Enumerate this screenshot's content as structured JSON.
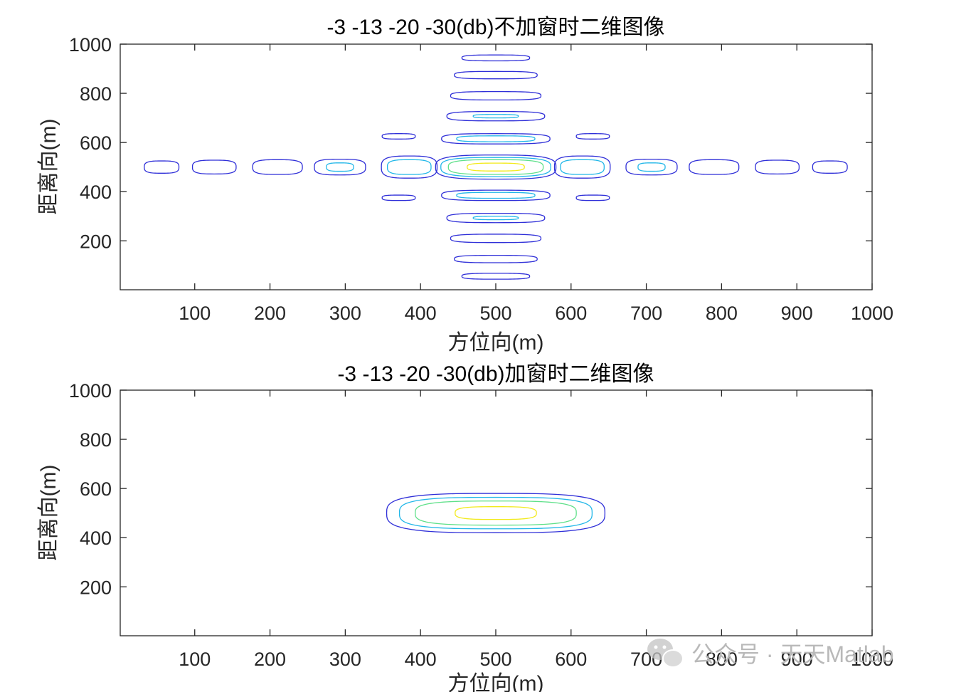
{
  "watermark": {
    "text": "公众号 · 天天Matlab",
    "icon": "wechat-icon",
    "color": "#b9b9b9"
  },
  "chart_data": [
    {
      "type": "contour",
      "title": "-3 -13 -20 -30(db)不加窗时二维图像",
      "xlabel": "方位向(m)",
      "ylabel": "距离向(m)",
      "xlim": [
        1,
        1000
      ],
      "ylim": [
        1,
        1000
      ],
      "xticks": [
        100,
        200,
        300,
        400,
        500,
        600,
        700,
        800,
        900,
        1000
      ],
      "yticks": [
        200,
        400,
        600,
        800,
        1000
      ],
      "levels": [
        {
          "name": "-30 dB",
          "color": "#2f2fd8"
        },
        {
          "name": "-20 dB",
          "color": "#22b7e8"
        },
        {
          "name": "-13 dB",
          "color": "#5fe08a"
        },
        {
          "name": "-3 dB",
          "color": "#f2ea1a"
        }
      ],
      "contours": [
        {
          "level": 0,
          "cx": 500,
          "cy": 500,
          "rx": 80,
          "ry": 49
        },
        {
          "level": 1,
          "cx": 500,
          "cy": 500,
          "rx": 73,
          "ry": 39
        },
        {
          "level": 2,
          "cx": 500,
          "cy": 500,
          "rx": 63,
          "ry": 30
        },
        {
          "level": 3,
          "cx": 500,
          "cy": 500,
          "rx": 38,
          "ry": 16
        },
        {
          "level": 0,
          "cx": 385,
          "cy": 500,
          "rx": 37,
          "ry": 45
        },
        {
          "level": 1,
          "cx": 385,
          "cy": 500,
          "rx": 29,
          "ry": 30
        },
        {
          "level": 0,
          "cx": 615,
          "cy": 500,
          "rx": 37,
          "ry": 45
        },
        {
          "level": 1,
          "cx": 615,
          "cy": 500,
          "rx": 29,
          "ry": 30
        },
        {
          "level": 0,
          "cx": 293,
          "cy": 500,
          "rx": 34,
          "ry": 32
        },
        {
          "level": 1,
          "cx": 293,
          "cy": 500,
          "rx": 18,
          "ry": 17
        },
        {
          "level": 0,
          "cx": 707,
          "cy": 500,
          "rx": 34,
          "ry": 32
        },
        {
          "level": 1,
          "cx": 707,
          "cy": 500,
          "rx": 18,
          "ry": 17
        },
        {
          "level": 0,
          "cx": 210,
          "cy": 500,
          "rx": 33,
          "ry": 30
        },
        {
          "level": 0,
          "cx": 790,
          "cy": 500,
          "rx": 33,
          "ry": 30
        },
        {
          "level": 0,
          "cx": 126,
          "cy": 500,
          "rx": 29,
          "ry": 28
        },
        {
          "level": 0,
          "cx": 874,
          "cy": 500,
          "rx": 29,
          "ry": 28
        },
        {
          "level": 0,
          "cx": 56,
          "cy": 500,
          "rx": 23,
          "ry": 25
        },
        {
          "level": 0,
          "cx": 944,
          "cy": 500,
          "rx": 23,
          "ry": 25
        },
        {
          "level": 0,
          "cx": 500,
          "cy": 615,
          "rx": 72,
          "ry": 21
        },
        {
          "level": 1,
          "cx": 500,
          "cy": 615,
          "rx": 52,
          "ry": 12
        },
        {
          "level": 0,
          "cx": 500,
          "cy": 385,
          "rx": 72,
          "ry": 21
        },
        {
          "level": 1,
          "cx": 500,
          "cy": 385,
          "rx": 52,
          "ry": 12
        },
        {
          "level": 0,
          "cx": 500,
          "cy": 707,
          "rx": 65,
          "ry": 19
        },
        {
          "level": 1,
          "cx": 500,
          "cy": 707,
          "rx": 30,
          "ry": 7
        },
        {
          "level": 0,
          "cx": 500,
          "cy": 293,
          "rx": 65,
          "ry": 19
        },
        {
          "level": 1,
          "cx": 500,
          "cy": 293,
          "rx": 30,
          "ry": 7
        },
        {
          "level": 0,
          "cx": 500,
          "cy": 790,
          "rx": 60,
          "ry": 17
        },
        {
          "level": 0,
          "cx": 500,
          "cy": 210,
          "rx": 60,
          "ry": 17
        },
        {
          "level": 0,
          "cx": 500,
          "cy": 874,
          "rx": 55,
          "ry": 15
        },
        {
          "level": 0,
          "cx": 500,
          "cy": 126,
          "rx": 55,
          "ry": 15
        },
        {
          "level": 0,
          "cx": 500,
          "cy": 944,
          "rx": 45,
          "ry": 12
        },
        {
          "level": 0,
          "cx": 500,
          "cy": 56,
          "rx": 45,
          "ry": 12
        },
        {
          "level": 0,
          "cx": 371,
          "cy": 625,
          "rx": 22,
          "ry": 11
        },
        {
          "level": 0,
          "cx": 629,
          "cy": 625,
          "rx": 22,
          "ry": 11
        },
        {
          "level": 0,
          "cx": 371,
          "cy": 375,
          "rx": 22,
          "ry": 11
        },
        {
          "level": 0,
          "cx": 629,
          "cy": 375,
          "rx": 22,
          "ry": 11
        }
      ]
    },
    {
      "type": "contour",
      "title": "-3 -13 -20 -30(db)加窗时二维图像",
      "xlabel": "方位向(m)",
      "ylabel": "距离向(m)",
      "xlim": [
        1,
        1000
      ],
      "ylim": [
        1,
        1000
      ],
      "xticks": [
        100,
        200,
        300,
        400,
        500,
        600,
        700,
        800,
        900,
        1000
      ],
      "yticks": [
        200,
        400,
        600,
        800,
        1000
      ],
      "levels": [
        {
          "name": "-30 dB",
          "color": "#2f2fd8"
        },
        {
          "name": "-20 dB",
          "color": "#22b7e8"
        },
        {
          "name": "-13 dB",
          "color": "#5fe08a"
        },
        {
          "name": "-3 dB",
          "color": "#f2ea1a"
        }
      ],
      "contours": [
        {
          "level": 0,
          "cx": 500,
          "cy": 500,
          "rx": 145,
          "ry": 80
        },
        {
          "level": 1,
          "cx": 500,
          "cy": 500,
          "rx": 128,
          "ry": 64
        },
        {
          "level": 2,
          "cx": 500,
          "cy": 500,
          "rx": 107,
          "ry": 49
        },
        {
          "level": 3,
          "cx": 500,
          "cy": 500,
          "rx": 54,
          "ry": 26
        }
      ]
    }
  ]
}
